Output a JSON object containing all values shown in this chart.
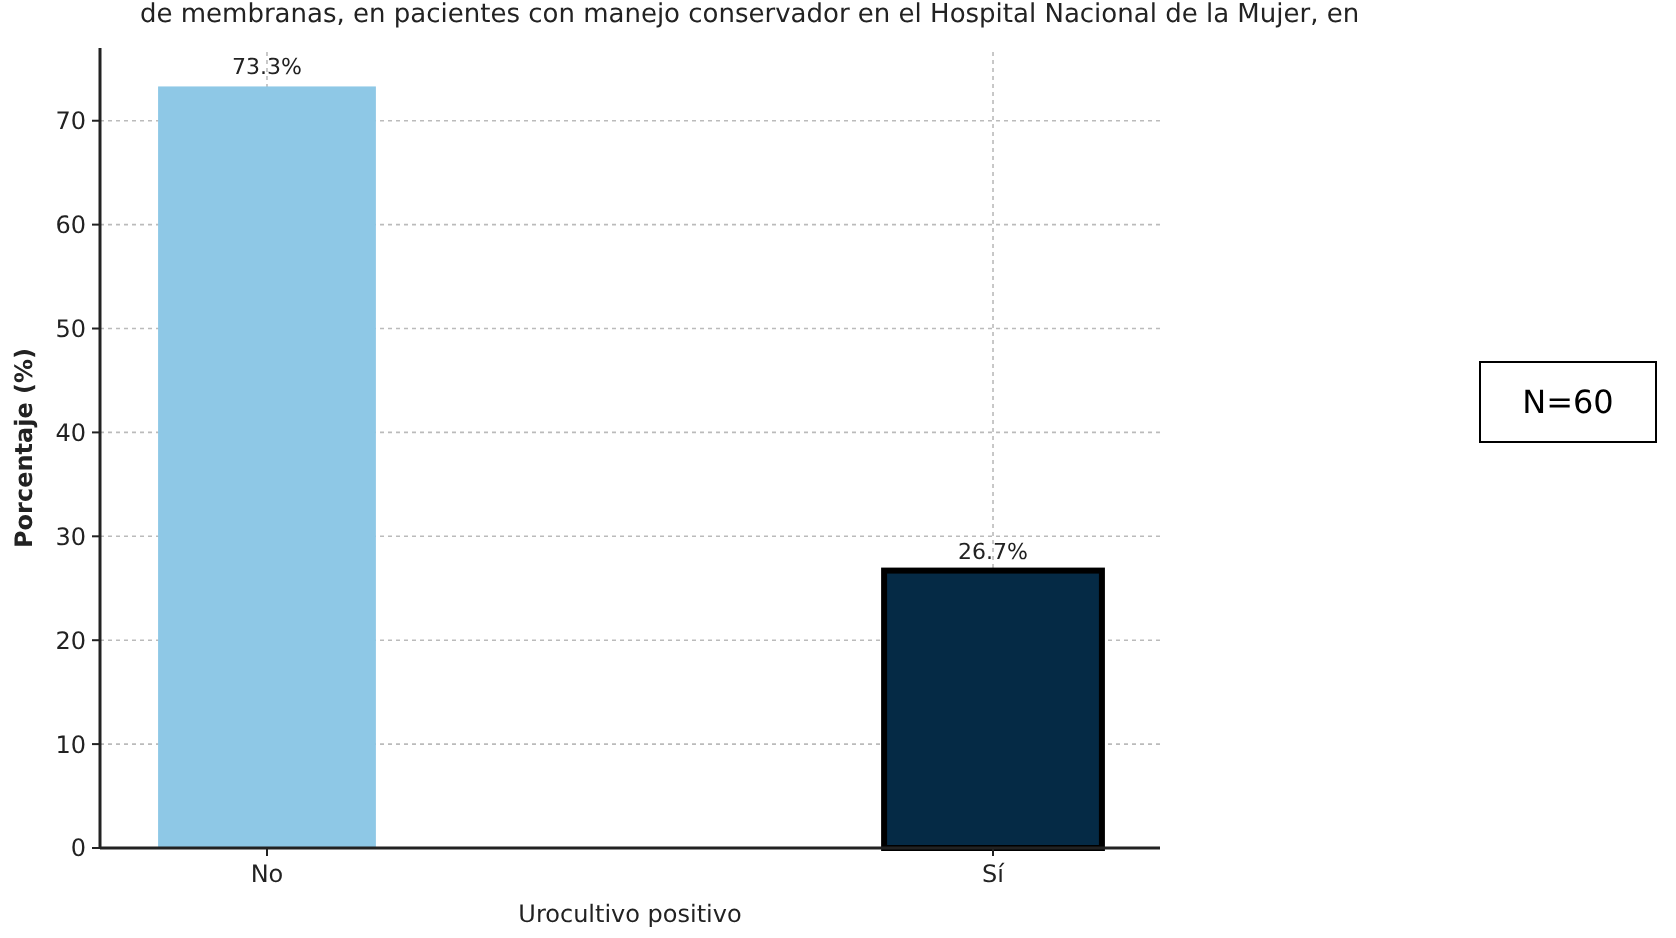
{
  "chart_data": {
    "type": "bar",
    "title": "de membranas, en pacientes con manejo conservador en el Hospital Nacional de la Mujer, en",
    "xlabel": "Urocultivo positivo",
    "ylabel": "Porcentaje (%)",
    "categories": [
      "No",
      "Sí"
    ],
    "values": [
      73.3,
      26.7
    ],
    "colors": [
      "#8ec8e6",
      "#052a45"
    ],
    "value_labels": [
      "73.3%",
      "26.7%"
    ],
    "ylim": [
      0,
      77
    ],
    "yticks": [
      0,
      10,
      20,
      30,
      40,
      50,
      60,
      70
    ],
    "grid": true,
    "annotations": [
      "N=60"
    ]
  }
}
